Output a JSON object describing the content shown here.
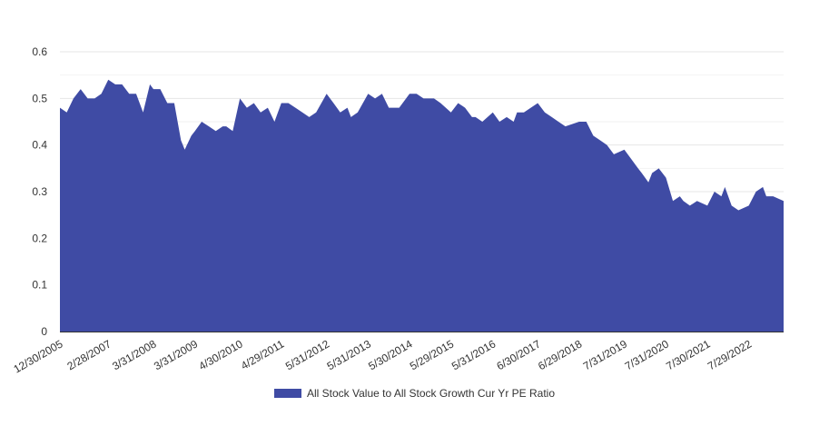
{
  "chart_data": {
    "type": "area",
    "x_tick_labels": [
      "12/30/2005",
      "2/28/2007",
      "3/31/2008",
      "3/31/2009",
      "4/30/2010",
      "4/29/2011",
      "5/31/2012",
      "5/31/2013",
      "5/30/2014",
      "5/29/2015",
      "5/31/2016",
      "6/30/2017",
      "6/29/2018",
      "7/31/2019",
      "7/31/2020",
      "7/30/2021",
      "7/29/2022"
    ],
    "y_tick_labels": [
      "0",
      "0.1",
      "0.2",
      "0.3",
      "0.4",
      "0.5",
      "0.6"
    ],
    "ylim": [
      0,
      0.6
    ],
    "x_range": [
      "2005-12-30",
      "2023-05-31"
    ],
    "grid": "horizontal",
    "legend_position": "bottom",
    "series": [
      {
        "name": "All Stock Value to All Stock Growth Cur Yr PE Ratio",
        "color": "#3f4ba4",
        "x": [
          "2005-12-30",
          "2006-02-28",
          "2006-04-28",
          "2006-06-30",
          "2006-08-31",
          "2006-10-31",
          "2006-12-29",
          "2007-02-28",
          "2007-04-30",
          "2007-06-29",
          "2007-08-31",
          "2007-10-31",
          "2007-12-31",
          "2008-02-29",
          "2008-03-31",
          "2008-05-30",
          "2008-07-31",
          "2008-09-30",
          "2008-11-28",
          "2008-12-31",
          "2009-02-27",
          "2009-03-31",
          "2009-05-29",
          "2009-07-31",
          "2009-09-30",
          "2009-11-30",
          "2009-12-31",
          "2010-02-26",
          "2010-04-30",
          "2010-06-30",
          "2010-08-31",
          "2010-10-29",
          "2010-12-31",
          "2011-02-28",
          "2011-04-29",
          "2011-06-30",
          "2011-08-31",
          "2011-10-31",
          "2011-12-30",
          "2012-02-29",
          "2012-05-31",
          "2012-07-31",
          "2012-09-28",
          "2012-11-30",
          "2012-12-31",
          "2013-02-28",
          "2013-05-31",
          "2013-07-31",
          "2013-09-30",
          "2013-11-29",
          "2013-12-31",
          "2014-02-28",
          "2014-05-30",
          "2014-07-31",
          "2014-09-30",
          "2014-11-28",
          "2014-12-31",
          "2015-02-27",
          "2015-05-29",
          "2015-07-31",
          "2015-09-30",
          "2015-11-30",
          "2015-12-31",
          "2016-02-29",
          "2016-05-31",
          "2016-07-29",
          "2016-09-30",
          "2016-11-30",
          "2016-12-30",
          "2017-02-28",
          "2017-06-30",
          "2017-08-31",
          "2017-10-31",
          "2017-12-29",
          "2018-02-28",
          "2018-06-29",
          "2018-08-31",
          "2018-10-31",
          "2018-12-31",
          "2019-02-28",
          "2019-04-30",
          "2019-07-31",
          "2019-09-30",
          "2019-11-29",
          "2019-12-31",
          "2020-02-28",
          "2020-03-31",
          "2020-05-29",
          "2020-07-31",
          "2020-09-30",
          "2020-11-30",
          "2020-12-31",
          "2021-02-26",
          "2021-04-30",
          "2021-07-30",
          "2021-09-30",
          "2021-11-30",
          "2021-12-31",
          "2022-02-28",
          "2022-04-29",
          "2022-07-29",
          "2022-09-30",
          "2022-11-30",
          "2022-12-30",
          "2023-02-28",
          "2023-05-31"
        ],
        "values": [
          0.48,
          0.47,
          0.5,
          0.52,
          0.5,
          0.5,
          0.51,
          0.54,
          0.53,
          0.53,
          0.51,
          0.51,
          0.47,
          0.53,
          0.52,
          0.52,
          0.49,
          0.49,
          0.41,
          0.39,
          0.42,
          0.43,
          0.45,
          0.44,
          0.43,
          0.44,
          0.44,
          0.43,
          0.5,
          0.48,
          0.49,
          0.47,
          0.48,
          0.45,
          0.49,
          0.49,
          0.48,
          0.47,
          0.46,
          0.47,
          0.51,
          0.49,
          0.47,
          0.48,
          0.46,
          0.47,
          0.51,
          0.5,
          0.51,
          0.48,
          0.48,
          0.48,
          0.51,
          0.51,
          0.5,
          0.5,
          0.5,
          0.49,
          0.47,
          0.49,
          0.48,
          0.46,
          0.46,
          0.45,
          0.47,
          0.45,
          0.46,
          0.45,
          0.47,
          0.47,
          0.49,
          0.47,
          0.46,
          0.45,
          0.44,
          0.45,
          0.45,
          0.42,
          0.41,
          0.4,
          0.38,
          0.39,
          0.37,
          0.35,
          0.34,
          0.32,
          0.34,
          0.35,
          0.33,
          0.28,
          0.29,
          0.28,
          0.27,
          0.28,
          0.27,
          0.3,
          0.29,
          0.31,
          0.27,
          0.26,
          0.27,
          0.3,
          0.31,
          0.29,
          0.29,
          0.28
        ]
      }
    ]
  }
}
